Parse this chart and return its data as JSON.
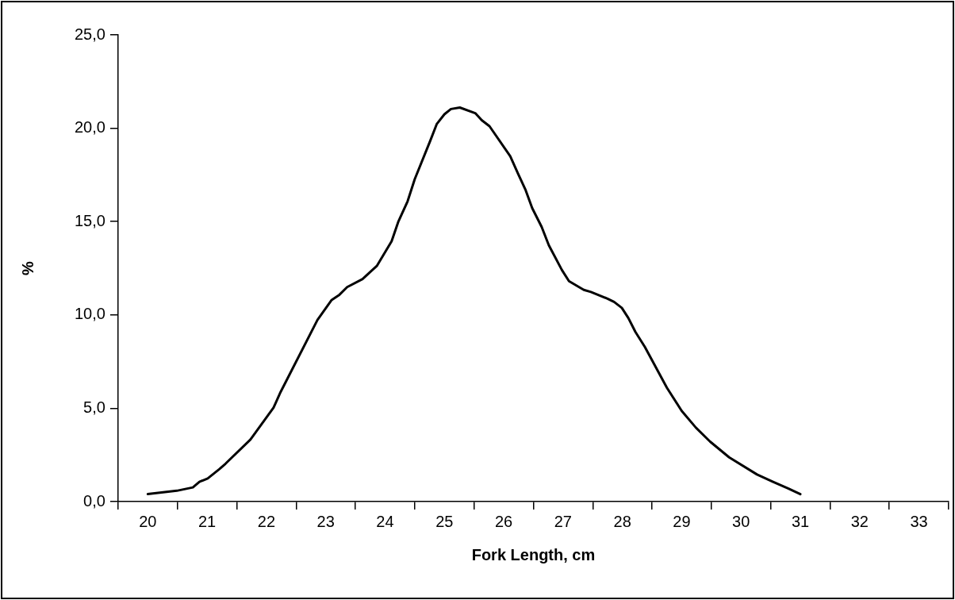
{
  "chart_data": {
    "type": "line",
    "xlabel": "Fork Length, cm",
    "ylabel": "%",
    "x": [
      20.0,
      20.49,
      20.76,
      20.87,
      21.01,
      21.21,
      21.31,
      21.73,
      22.12,
      22.24,
      22.86,
      23.1,
      23.23,
      23.36,
      23.62,
      23.75,
      23.86,
      24.11,
      24.22,
      24.38,
      24.5,
      24.76,
      24.87,
      25.0,
      25.11,
      25.26,
      25.52,
      25.63,
      25.76,
      26.11,
      26.24,
      26.37,
      26.48,
      26.64,
      26.76,
      26.98,
      27.1,
      27.35,
      27.47,
      27.75,
      27.86,
      27.99,
      28.1,
      28.22,
      28.38,
      28.75,
      29.0,
      29.24,
      29.48,
      29.8,
      30.27,
      30.54,
      30.8,
      31.0
    ],
    "series": [
      {
        "color": "#000000",
        "values": [
          0.4,
          0.58,
          0.76,
          1.06,
          1.24,
          1.75,
          2.03,
          3.32,
          5.03,
          5.88,
          9.73,
          10.8,
          11.08,
          11.49,
          11.92,
          12.3,
          12.62,
          13.95,
          14.97,
          16.09,
          17.27,
          19.32,
          20.22,
          20.75,
          21.03,
          21.11,
          20.81,
          20.43,
          20.11,
          18.5,
          17.58,
          16.68,
          15.72,
          14.71,
          13.73,
          12.41,
          11.81,
          11.34,
          11.23,
          10.87,
          10.7,
          10.38,
          9.84,
          9.09,
          8.28,
          6.1,
          4.86,
          3.96,
          3.21,
          2.37,
          1.45,
          1.06,
          0.7,
          0.4
        ]
      }
    ],
    "xlim": [
      19.5,
      33.5
    ],
    "xticks": [
      {
        "value": 19.5,
        "label": null
      },
      20,
      {
        "value": 20.5,
        "label": null
      },
      21,
      {
        "value": 21.5,
        "label": null
      },
      22,
      {
        "value": 22.5,
        "label": null
      },
      23,
      {
        "value": 23.5,
        "label": null
      },
      24,
      {
        "value": 24.5,
        "label": null
      },
      25,
      {
        "value": 25.5,
        "label": null
      },
      26,
      {
        "value": 26.5,
        "label": null
      },
      27,
      {
        "value": 27.5,
        "label": null
      },
      28,
      {
        "value": 28.5,
        "label": null
      },
      29,
      {
        "value": 29.5,
        "label": null
      },
      30,
      {
        "value": 30.5,
        "label": null
      },
      31,
      {
        "value": 31.5,
        "label": null
      },
      32,
      {
        "value": 32.5,
        "label": null
      },
      33,
      {
        "value": 33.5,
        "label": null
      }
    ],
    "ylim": [
      0,
      25
    ],
    "yticks": [
      {
        "value": 0,
        "label": "0,0"
      },
      {
        "value": 5,
        "label": "5,0"
      },
      {
        "value": 10,
        "label": "10,0"
      },
      {
        "value": 15,
        "label": "15,0"
      },
      {
        "value": 20,
        "label": "20,0"
      },
      {
        "value": 25,
        "label": "25,0"
      }
    ],
    "marker": "none",
    "line_style": "solid"
  }
}
